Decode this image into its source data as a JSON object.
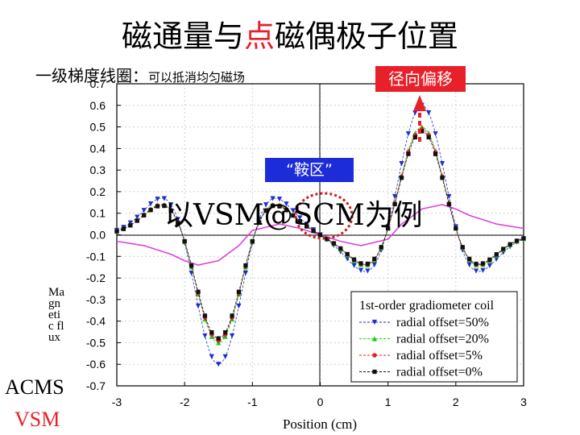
{
  "title": {
    "part1": "磁通量与",
    "highlight": "点",
    "part2": "磁偶极子位置"
  },
  "subtitle": {
    "main": "一级梯度线圈：",
    "note": "可以抵消均匀磁场"
  },
  "tags": {
    "radial": "径向偏移",
    "saddle": "“鞍区”"
  },
  "overlay_text": "以VSM@SCM为例",
  "left_labels": {
    "acms": "ACMS",
    "vsm": "VSM"
  },
  "y_axis_letters": "Magnetic flux",
  "colors": {
    "red": "#e8202a",
    "blue": "#1c2cd8",
    "magenta": "#e040e0",
    "s50": "#1a2fd0",
    "s20": "#11d011",
    "s5": "#e62020",
    "s0": "#111111"
  },
  "chart_data": {
    "type": "line",
    "xlabel": "Position (cm)",
    "ylabel": "Magnetic flux",
    "xlim": [
      -3,
      3
    ],
    "ylim": [
      -0.7,
      0.7
    ],
    "xticks": [
      "-3",
      "-2",
      "-1",
      "0",
      "1",
      "2",
      "3"
    ],
    "yticks": [
      "0.7",
      "0.6",
      "0.5",
      "0.4",
      "0.3",
      "0.2",
      "0.1",
      "0.0",
      "-0.1",
      "-0.2",
      "-0.3",
      "-0.4",
      "-0.5",
      "-0.6",
      "-0.7"
    ],
    "legend_title": "1st-order gradiometer coil",
    "series": [
      {
        "name": "radial offset=50%",
        "marker": "triangle-down",
        "amplitude": 0.6,
        "color_key": "s50"
      },
      {
        "name": "radial offset=20%",
        "marker": "triangle-up",
        "amplitude": 0.5,
        "color_key": "s20"
      },
      {
        "name": "radial offset=5%",
        "marker": "circle",
        "amplitude": 0.49,
        "color_key": "s5"
      },
      {
        "name": "radial offset=0%",
        "marker": "square",
        "amplitude": 0.48,
        "color_key": "s0"
      }
    ],
    "reference_curve": {
      "name": "pink curve",
      "x": [
        -3,
        -2.6,
        -2.2,
        -2,
        -1.8,
        -1.5,
        -1.2,
        -1.0,
        -0.6,
        -0.3,
        0,
        0.3,
        0.6,
        1.0,
        1.2,
        1.5,
        1.8,
        2.0,
        2.2,
        2.6,
        3
      ],
      "y": [
        -0.03,
        -0.05,
        -0.09,
        -0.12,
        -0.14,
        -0.12,
        -0.05,
        0.02,
        0.05,
        0.03,
        0.0,
        -0.03,
        -0.05,
        -0.02,
        0.05,
        0.12,
        0.14,
        0.12,
        0.09,
        0.05,
        0.03
      ]
    }
  }
}
